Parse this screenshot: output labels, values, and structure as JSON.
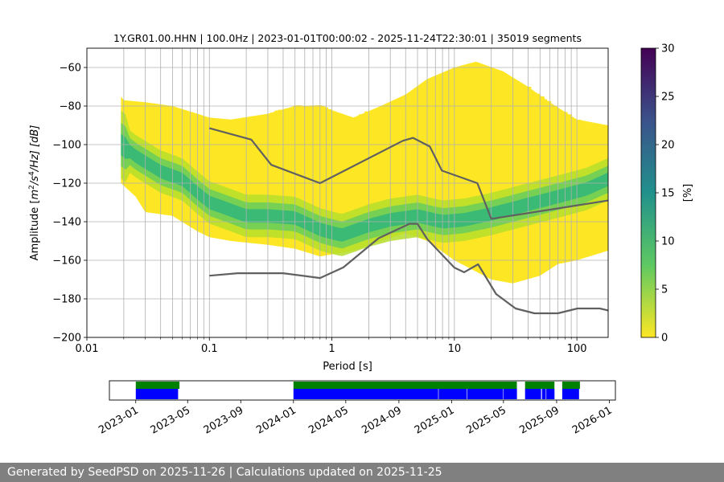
{
  "footer": {
    "text": "Generated by SeedPSD on 2025-11-26 | Calculations updated on 2025-11-25"
  },
  "chart_data": [
    {
      "type": "heatmap",
      "title": "1Y.GR01.00.HHN | 100.0Hz | 2023-01-01T00:00:02 - 2025-11-24T22:30:01 | 35019 segments",
      "xlabel": "Period [s]",
      "ylabel_parts": [
        "Amplitude [",
        "m",
        "2",
        "/s",
        "4",
        "/Hz] [dB]"
      ],
      "x_scale": "log",
      "xlim": [
        0.01,
        180
      ],
      "ylim": [
        -200,
        -50
      ],
      "x_ticks": [
        {
          "value": 0.01,
          "label": "0.01"
        },
        {
          "value": 0.1,
          "label": "0.1"
        },
        {
          "value": 1,
          "label": "1"
        },
        {
          "value": 10,
          "label": "10"
        },
        {
          "value": 100,
          "label": "100"
        }
      ],
      "y_ticks": [
        -200,
        -180,
        -160,
        -140,
        -120,
        -100,
        -80,
        -60
      ],
      "grid": true,
      "colorbar": {
        "label": "[%]",
        "range": [
          0,
          30
        ],
        "ticks": [
          0,
          5,
          10,
          15,
          20,
          25,
          30
        ],
        "colormap": "viridis",
        "stops": [
          "#fde725",
          "#5ec962",
          "#21918c",
          "#3b528b",
          "#440154"
        ]
      },
      "density": {
        "lower_edge": [
          [
            0.019,
            -120
          ],
          [
            0.025,
            -127
          ],
          [
            0.03,
            -135
          ],
          [
            0.05,
            -137
          ],
          [
            0.08,
            -145
          ],
          [
            0.1,
            -148
          ],
          [
            0.15,
            -150
          ],
          [
            0.3,
            -152
          ],
          [
            0.5,
            -154
          ],
          [
            0.8,
            -158
          ],
          [
            1.5,
            -155
          ],
          [
            2.5,
            -150
          ],
          [
            4,
            -146
          ],
          [
            6,
            -150
          ],
          [
            10,
            -160
          ],
          [
            20,
            -170
          ],
          [
            30,
            -172
          ],
          [
            50,
            -168
          ],
          [
            70,
            -162
          ],
          [
            100,
            -160
          ],
          [
            180,
            -155
          ]
        ],
        "upper_edge": [
          [
            0.019,
            -75
          ],
          [
            0.02,
            -77
          ],
          [
            0.03,
            -78
          ],
          [
            0.05,
            -80
          ],
          [
            0.08,
            -84
          ],
          [
            0.1,
            -86
          ],
          [
            0.15,
            -87
          ],
          [
            0.3,
            -84
          ],
          [
            0.5,
            -80
          ],
          [
            0.8,
            -80
          ],
          [
            1.5,
            -86
          ],
          [
            2.5,
            -80
          ],
          [
            4,
            -74
          ],
          [
            6,
            -66
          ],
          [
            10,
            -60
          ],
          [
            15,
            -57
          ],
          [
            25,
            -62
          ],
          [
            40,
            -70
          ],
          [
            60,
            -78
          ],
          [
            100,
            -87
          ],
          [
            180,
            -90
          ]
        ],
        "mode_curve": [
          [
            0.019,
            -100
          ],
          [
            0.025,
            -106
          ],
          [
            0.04,
            -114
          ],
          [
            0.06,
            -118
          ],
          [
            0.08,
            -125
          ],
          [
            0.1,
            -130
          ],
          [
            0.15,
            -134
          ],
          [
            0.2,
            -137
          ],
          [
            0.3,
            -137
          ],
          [
            0.5,
            -138
          ],
          [
            0.8,
            -144
          ],
          [
            1.2,
            -147
          ],
          [
            2,
            -142
          ],
          [
            3,
            -139
          ],
          [
            5,
            -137
          ],
          [
            8,
            -140
          ],
          [
            12,
            -139
          ],
          [
            20,
            -136
          ],
          [
            40,
            -131
          ],
          [
            70,
            -127
          ],
          [
            120,
            -123
          ],
          [
            180,
            -118
          ]
        ]
      },
      "series": [
        {
          "name": "NHNM",
          "color": "#606060",
          "points": [
            [
              0.1,
              -91.5
            ],
            [
              0.22,
              -97.4
            ],
            [
              0.32,
              -110.5
            ],
            [
              0.8,
              -120
            ],
            [
              3.8,
              -98
            ],
            [
              4.6,
              -96.5
            ],
            [
              6.3,
              -101
            ],
            [
              7.9,
              -113.5
            ],
            [
              15.4,
              -120
            ],
            [
              20,
              -138.5
            ],
            [
              180,
              -129
            ]
          ]
        },
        {
          "name": "NLNM",
          "color": "#606060",
          "points": [
            [
              0.1,
              -168
            ],
            [
              0.17,
              -166.7
            ],
            [
              0.4,
              -166.7
            ],
            [
              0.8,
              -169.2
            ],
            [
              1.24,
              -163.7
            ],
            [
              2.4,
              -148.6
            ],
            [
              4.3,
              -141.1
            ],
            [
              5,
              -141.1
            ],
            [
              6,
              -149
            ],
            [
              10,
              -163.8
            ],
            [
              12,
              -166.2
            ],
            [
              15.6,
              -162.1
            ],
            [
              21.9,
              -177.5
            ],
            [
              31.6,
              -185
            ],
            [
              45,
              -187.5
            ],
            [
              70,
              -187.5
            ],
            [
              101,
              -185
            ],
            [
              154,
              -185
            ],
            [
              180,
              -186
            ]
          ]
        }
      ]
    },
    {
      "type": "bar",
      "xlim": [
        "2022-11-01",
        "2026-01-15"
      ],
      "x_ticks": [
        "2023-01",
        "2023-05",
        "2023-09",
        "2024-01",
        "2024-05",
        "2024-09",
        "2025-01",
        "2025-05",
        "2025-09",
        "2026-01"
      ],
      "series": [
        {
          "color": "#008000",
          "intervals": [
            [
              "2023-01-01",
              "2023-04-12"
            ],
            [
              "2024-01-01",
              "2025-06-01"
            ],
            [
              "2025-06-20",
              "2025-08-27"
            ],
            [
              "2025-09-14",
              "2025-10-25"
            ]
          ]
        },
        {
          "color": "#0000ff",
          "intervals": [
            [
              "2023-01-01",
              "2023-04-09"
            ],
            [
              "2024-01-01",
              "2024-12-01"
            ],
            [
              "2024-12-02",
              "2025-02-05"
            ],
            [
              "2025-02-06",
              "2025-04-30"
            ],
            [
              "2025-05-01",
              "2025-06-01"
            ],
            [
              "2025-06-20",
              "2025-07-27"
            ],
            [
              "2025-07-29",
              "2025-08-07"
            ],
            [
              "2025-08-08",
              "2025-08-27"
            ],
            [
              "2025-09-14",
              "2025-10-23"
            ]
          ]
        }
      ]
    }
  ]
}
